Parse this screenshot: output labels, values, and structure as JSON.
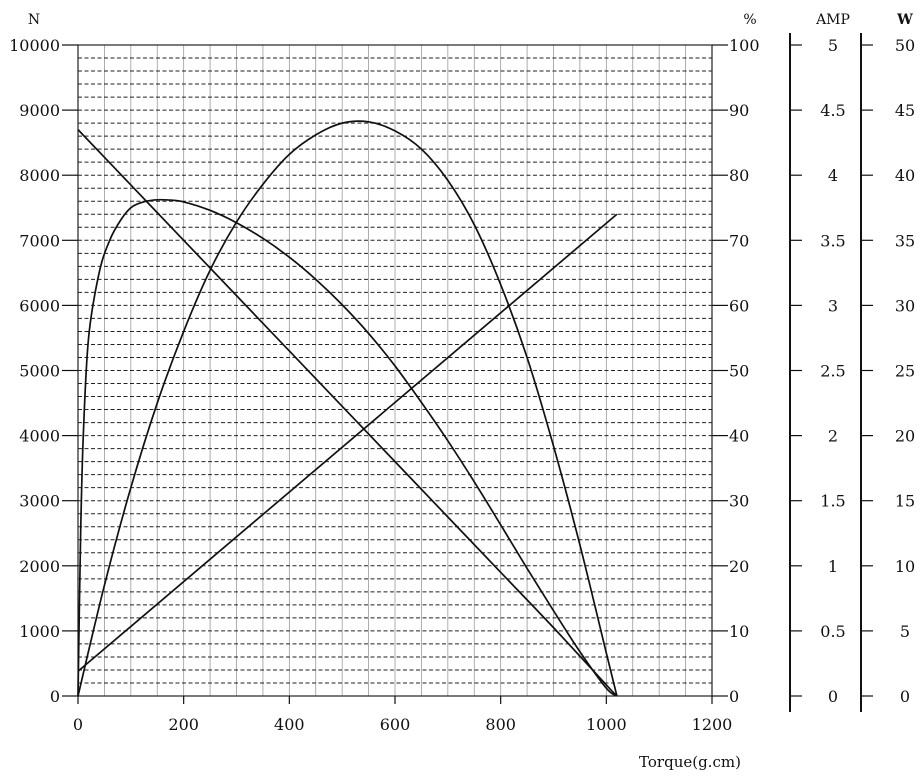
{
  "chart_data": {
    "type": "line",
    "xlabel": "Torque(g.cm)",
    "xlim": [
      0,
      1200
    ],
    "x_ticks": [
      "0",
      "200",
      "400",
      "600",
      "800",
      "1000",
      "1200"
    ],
    "axes": {
      "speed": {
        "unit_label": "N",
        "range": [
          0,
          10000
        ],
        "ticks": [
          "0",
          "1000",
          "2000",
          "3000",
          "4000",
          "5000",
          "6000",
          "7000",
          "8000",
          "9000",
          "10000"
        ]
      },
      "efficiency": {
        "unit_label": "%",
        "range": [
          0,
          100
        ],
        "ticks": [
          "0",
          "10",
          "20",
          "30",
          "40",
          "50",
          "60",
          "70",
          "80",
          "90",
          "100"
        ]
      },
      "current": {
        "unit_label": "AMP",
        "range": [
          0,
          5
        ],
        "ticks": [
          "0",
          "0.5",
          "1",
          "1.5",
          "2",
          "2.5",
          "3",
          "3.5",
          "4",
          "4.5",
          "5"
        ]
      },
      "power": {
        "unit_label": "W",
        "range": [
          0,
          50
        ],
        "ticks": [
          "0",
          "5",
          "10",
          "15",
          "20",
          "25",
          "30",
          "35",
          "40",
          "45",
          "50"
        ]
      }
    },
    "grid": true,
    "series": [
      {
        "axis": "speed",
        "x": [
          0,
          100,
          200,
          300,
          400,
          500,
          600,
          700,
          800,
          900,
          1000,
          1020
        ],
        "values": [
          8700,
          7850,
          7000,
          6150,
          5300,
          4450,
          3600,
          2750,
          1900,
          1050,
          170,
          0
        ]
      },
      {
        "axis": "efficiency",
        "x": [
          0,
          5,
          10,
          20,
          40,
          60,
          80,
          100,
          120,
          145,
          170,
          200,
          250,
          300,
          350,
          400,
          450,
          500,
          550,
          600,
          650,
          700,
          750,
          800,
          850,
          900,
          950,
          1000,
          1020
        ],
        "values": [
          0,
          25,
          40,
          55,
          65,
          70,
          73,
          75,
          75.8,
          76.2,
          76.2,
          75.9,
          74.6,
          72.7,
          70.3,
          67.4,
          64.0,
          60.1,
          55.7,
          50.7,
          45.1,
          39.2,
          32.9,
          26.3,
          19.6,
          13.1,
          6.8,
          1.2,
          0
        ]
      },
      {
        "axis": "current",
        "x": [
          0,
          1020
        ],
        "values": [
          0.19,
          3.7
        ]
      },
      {
        "axis": "power",
        "x": [
          0,
          50,
          100,
          150,
          200,
          250,
          300,
          350,
          400,
          450,
          500,
          550,
          600,
          650,
          700,
          750,
          800,
          850,
          900,
          950,
          1000,
          1020
        ],
        "values": [
          0,
          8.5,
          16.0,
          22.5,
          28.0,
          32.7,
          36.4,
          39.3,
          41.6,
          43.1,
          44.0,
          44.1,
          43.4,
          42.0,
          39.6,
          36.2,
          31.6,
          26.0,
          19.2,
          11.6,
          3.3,
          0
        ]
      }
    ]
  }
}
